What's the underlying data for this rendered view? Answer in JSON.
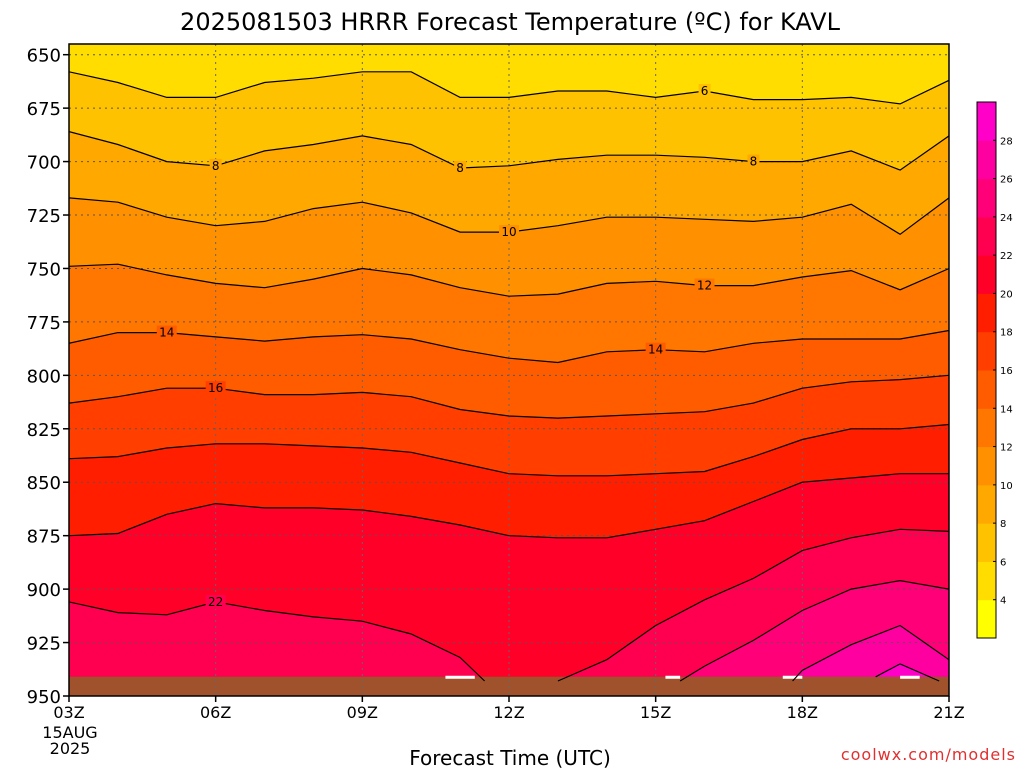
{
  "chart_data": {
    "type": "heatmap",
    "title": "2025081503 HRRR Forecast Temperature (ºC) for KAVL",
    "xlabel": "Forecast Time (UTC)",
    "ylabel": "",
    "credit": "coolwx.com/models",
    "date_label": [
      "15AUG",
      "2025"
    ],
    "x_ticks": [
      "03Z",
      "06Z",
      "09Z",
      "12Z",
      "15Z",
      "18Z",
      "21Z"
    ],
    "y_ticks": [
      650,
      675,
      700,
      725,
      750,
      775,
      800,
      825,
      850,
      875,
      900,
      925,
      950
    ],
    "ylim": [
      950,
      645
    ],
    "xlim_hours": [
      3,
      21
    ],
    "surface_pressure": 941,
    "colorbar": {
      "ticks": [
        4,
        6,
        8,
        10,
        12,
        14,
        16,
        18,
        20,
        22,
        24,
        26,
        28
      ],
      "levels": [
        2,
        4,
        6,
        8,
        10,
        12,
        14,
        16,
        18,
        20,
        22,
        24,
        26,
        28,
        30
      ],
      "colors": [
        "#ffff00",
        "#ffdd00",
        "#ffc200",
        "#ffa800",
        "#ff9000",
        "#ff7600",
        "#ff5c00",
        "#ff3e00",
        "#ff1e00",
        "#ff0028",
        "#ff0050",
        "#ff0078",
        "#ff00a0",
        "#ff00c8"
      ]
    },
    "contours": [
      {
        "level": 6,
        "label": "6",
        "label_hours": [
          16
        ],
        "points": [
          [
            3,
            658
          ],
          [
            4,
            663
          ],
          [
            5,
            670
          ],
          [
            6,
            670
          ],
          [
            7,
            663
          ],
          [
            8,
            661
          ],
          [
            9,
            658
          ],
          [
            10,
            658
          ],
          [
            11,
            670
          ],
          [
            12,
            670
          ],
          [
            13,
            667
          ],
          [
            14,
            667
          ],
          [
            15,
            670
          ],
          [
            16,
            667
          ],
          [
            17,
            671
          ],
          [
            18,
            671
          ],
          [
            19,
            670
          ],
          [
            20,
            673
          ],
          [
            21,
            662
          ]
        ]
      },
      {
        "level": 8,
        "label": "8",
        "label_hours": [
          6,
          11,
          17
        ],
        "points": [
          [
            3,
            686
          ],
          [
            4,
            692
          ],
          [
            5,
            700
          ],
          [
            6,
            702
          ],
          [
            7,
            695
          ],
          [
            8,
            692
          ],
          [
            9,
            688
          ],
          [
            10,
            692
          ],
          [
            11,
            703
          ],
          [
            12,
            702
          ],
          [
            13,
            699
          ],
          [
            14,
            697
          ],
          [
            15,
            697
          ],
          [
            16,
            698
          ],
          [
            17,
            700
          ],
          [
            18,
            700
          ],
          [
            19,
            695
          ],
          [
            20,
            704
          ],
          [
            21,
            688
          ]
        ]
      },
      {
        "level": 10,
        "label": "10",
        "label_hours": [
          12
        ],
        "points": [
          [
            3,
            717
          ],
          [
            4,
            719
          ],
          [
            5,
            726
          ],
          [
            6,
            730
          ],
          [
            7,
            728
          ],
          [
            8,
            722
          ],
          [
            9,
            719
          ],
          [
            10,
            724
          ],
          [
            11,
            733
          ],
          [
            12,
            733
          ],
          [
            13,
            730
          ],
          [
            14,
            726
          ],
          [
            15,
            726
          ],
          [
            16,
            727
          ],
          [
            17,
            728
          ],
          [
            18,
            726
          ],
          [
            19,
            720
          ],
          [
            20,
            734
          ],
          [
            21,
            717
          ]
        ]
      },
      {
        "level": 12,
        "label": "12",
        "label_hours": [
          16
        ],
        "points": [
          [
            3,
            749
          ],
          [
            4,
            748
          ],
          [
            5,
            753
          ],
          [
            6,
            757
          ],
          [
            7,
            759
          ],
          [
            8,
            755
          ],
          [
            9,
            750
          ],
          [
            10,
            753
          ],
          [
            11,
            759
          ],
          [
            12,
            763
          ],
          [
            13,
            762
          ],
          [
            14,
            757
          ],
          [
            15,
            756
          ],
          [
            16,
            758
          ],
          [
            17,
            758
          ],
          [
            18,
            754
          ],
          [
            19,
            751
          ],
          [
            20,
            760
          ],
          [
            21,
            750
          ]
        ]
      },
      {
        "level": 14,
        "label": "14",
        "label_hours": [
          5,
          15
        ],
        "points": [
          [
            3,
            785
          ],
          [
            4,
            780
          ],
          [
            5,
            780
          ],
          [
            6,
            782
          ],
          [
            7,
            784
          ],
          [
            8,
            782
          ],
          [
            9,
            781
          ],
          [
            10,
            783
          ],
          [
            11,
            788
          ],
          [
            12,
            792
          ],
          [
            13,
            794
          ],
          [
            14,
            789
          ],
          [
            15,
            788
          ],
          [
            16,
            789
          ],
          [
            17,
            785
          ],
          [
            18,
            783
          ],
          [
            19,
            783
          ],
          [
            20,
            783
          ],
          [
            21,
            779
          ]
        ]
      },
      {
        "level": 16,
        "label": "16",
        "label_hours": [
          6
        ],
        "points": [
          [
            3,
            813
          ],
          [
            4,
            810
          ],
          [
            5,
            806
          ],
          [
            6,
            806
          ],
          [
            7,
            809
          ],
          [
            8,
            809
          ],
          [
            9,
            808
          ],
          [
            10,
            810
          ],
          [
            11,
            816
          ],
          [
            12,
            819
          ],
          [
            13,
            820
          ],
          [
            14,
            819
          ],
          [
            15,
            818
          ],
          [
            16,
            817
          ],
          [
            17,
            813
          ],
          [
            18,
            806
          ],
          [
            19,
            803
          ],
          [
            20,
            802
          ],
          [
            21,
            800
          ]
        ]
      },
      {
        "level": 18,
        "label": "",
        "label_hours": [],
        "points": [
          [
            3,
            839
          ],
          [
            4,
            838
          ],
          [
            5,
            834
          ],
          [
            6,
            832
          ],
          [
            7,
            832
          ],
          [
            8,
            833
          ],
          [
            9,
            834
          ],
          [
            10,
            836
          ],
          [
            11,
            841
          ],
          [
            12,
            846
          ],
          [
            13,
            847
          ],
          [
            14,
            847
          ],
          [
            15,
            846
          ],
          [
            16,
            845
          ],
          [
            17,
            838
          ],
          [
            18,
            830
          ],
          [
            19,
            825
          ],
          [
            20,
            825
          ],
          [
            21,
            823
          ]
        ]
      },
      {
        "level": 20,
        "label": "",
        "label_hours": [],
        "points": [
          [
            3,
            875
          ],
          [
            4,
            874
          ],
          [
            5,
            865
          ],
          [
            6,
            860
          ],
          [
            7,
            862
          ],
          [
            8,
            862
          ],
          [
            9,
            863
          ],
          [
            10,
            866
          ],
          [
            11,
            870
          ],
          [
            12,
            875
          ],
          [
            13,
            876
          ],
          [
            14,
            876
          ],
          [
            15,
            872
          ],
          [
            16,
            868
          ],
          [
            17,
            859
          ],
          [
            18,
            850
          ],
          [
            19,
            848
          ],
          [
            20,
            846
          ],
          [
            21,
            846
          ]
        ]
      },
      {
        "level": 22,
        "label": "22",
        "label_hours": [
          6
        ],
        "points": [
          [
            3,
            906
          ],
          [
            4,
            911
          ],
          [
            5,
            912
          ],
          [
            6,
            906
          ],
          [
            7,
            910
          ],
          [
            8,
            913
          ],
          [
            9,
            915
          ],
          [
            10,
            921
          ],
          [
            11,
            932
          ],
          [
            11.5,
            943
          ]
        ]
      },
      {
        "level": 22,
        "label": "",
        "label_hours": [],
        "points": [
          [
            13,
            943
          ],
          [
            14,
            933
          ],
          [
            15,
            917
          ],
          [
            16,
            905
          ],
          [
            17,
            895
          ],
          [
            18,
            882
          ],
          [
            19,
            876
          ],
          [
            20,
            872
          ],
          [
            21,
            873
          ]
        ]
      },
      {
        "level": 24,
        "label": "",
        "label_hours": [],
        "points": [
          [
            15.5,
            943
          ],
          [
            16,
            936
          ],
          [
            17,
            924
          ],
          [
            18,
            910
          ],
          [
            19,
            900
          ],
          [
            20,
            896
          ],
          [
            21,
            900
          ]
        ]
      },
      {
        "level": 26,
        "label": "",
        "label_hours": [],
        "points": [
          [
            17.8,
            943
          ],
          [
            18,
            938
          ],
          [
            19,
            926
          ],
          [
            20,
            917
          ],
          [
            21,
            933
          ]
        ]
      },
      {
        "level": 28,
        "label": "",
        "label_hours": [],
        "points": [
          [
            19.5,
            941
          ],
          [
            20,
            935
          ],
          [
            20.8,
            943
          ]
        ]
      }
    ]
  }
}
